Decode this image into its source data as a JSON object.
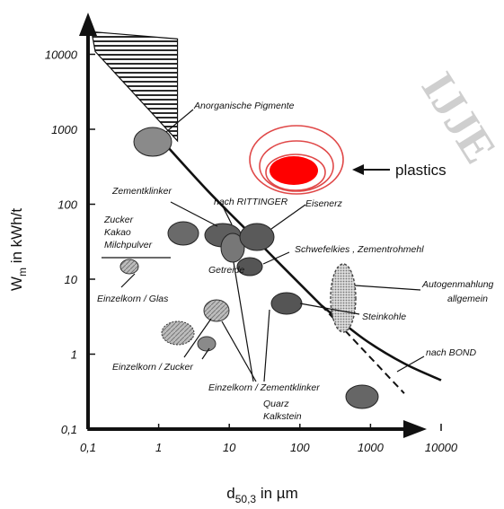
{
  "chart_data": {
    "type": "scatter",
    "xlabel_main": "d",
    "xlabel_sub": "50,3",
    "xlabel_unit": " in µm",
    "ylabel_main": "W",
    "ylabel_sub": "m",
    "ylabel_unit": " in kWh/t",
    "x_scale": "log",
    "y_scale": "log",
    "xlim": [
      0.1,
      20000
    ],
    "ylim": [
      0.1,
      30000
    ],
    "x_ticks": [
      "0,1",
      "1",
      "10",
      "100",
      "1000",
      "10000"
    ],
    "x_tick_values": [
      0.1,
      1,
      10,
      100,
      1000,
      10000
    ],
    "y_ticks": [
      "0,1",
      "1",
      "10",
      "100",
      "1000",
      "10000"
    ],
    "y_tick_values": [
      0.1,
      1,
      10,
      100,
      1000,
      10000
    ],
    "colors": {
      "ink": "#111111",
      "blob": "#6a6a6a",
      "plastics": "#ff0000",
      "ring": "#e04848"
    },
    "rittinger_curve": {
      "x": [
        1.3,
        5,
        20,
        60,
        200
      ],
      "y": [
        600,
        150,
        40,
        14,
        4.5
      ]
    },
    "bond_curve": {
      "x": [
        200,
        800,
        3000,
        10000
      ],
      "y": [
        4.5,
        1.6,
        0.75,
        0.45
      ]
    },
    "dashed_branch": {
      "x": [
        200,
        3000
      ],
      "y": [
        4.5,
        0.3
      ]
    },
    "hatched_band": {
      "x_left": 0.1,
      "x_right": 1.3,
      "y_top": 20000,
      "y_bottom_left": 20000,
      "y_bottom_right": 700
    },
    "materials": [
      {
        "label": "Anorganische Pigmente",
        "x": 1.3,
        "y": 650
      },
      {
        "label": "Zementklinker",
        "x": 25,
        "y": 40
      },
      {
        "label": "Eisenerz",
        "x": 80,
        "y": 35
      },
      {
        "label": "Getreide",
        "x": 35,
        "y": 25
      },
      {
        "label": "Zucker",
        "x": 3.5,
        "y": 38
      },
      {
        "label": "Schwefelkies , Zementrohmehl",
        "x": 80,
        "y": 14
      },
      {
        "label": "Einzelkorn / Glas",
        "x": 0.5,
        "y": 14
      },
      {
        "label": "Einzelkorn / Zucker",
        "x": 3,
        "y": 2.2
      },
      {
        "label": "Einzelkorn / Zementklinker",
        "x": 12,
        "y": 3.8
      },
      {
        "label": "Quarz",
        "x": 230,
        "y": 4.7
      },
      {
        "label": "Kalkstein",
        "x": 5000,
        "y": 0.25
      },
      {
        "label": "Autogenmahlung allgemein",
        "x": 2500,
        "y": 6
      },
      {
        "label": "plastics",
        "x": 2000,
        "y": 300
      }
    ],
    "annotations": [
      "Anorganische Pigmente",
      "nach RITTINGER",
      "Zementklinker",
      "Eisenerz",
      "Zucker",
      "Kakao",
      "Milchpulver",
      "Getreide",
      "Schwefelkies , Zementrohmehl",
      "Einzelkorn / Glas",
      "Einzelkorn / Zucker",
      "Einzelkorn / Zementklinker",
      "Quarz",
      "Kalkstein",
      "Autogenmahlung",
      "allgemein",
      "Steinkohle",
      "nach BOND"
    ],
    "plastics_label": "plastics",
    "watermark": "IJJE"
  }
}
